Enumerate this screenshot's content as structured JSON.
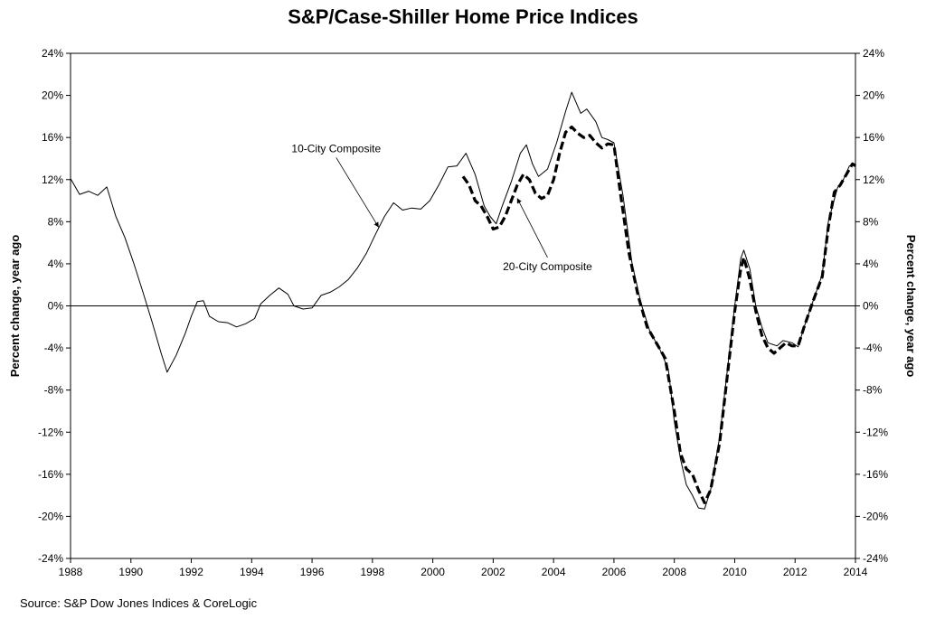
{
  "chart_data": {
    "type": "line",
    "title": "S&P/Case-Shiller Home Price Indices",
    "source": "Source: S&P Dow Jones Indices & CoreLogic",
    "ylabel_left": "Percent change, year ago",
    "ylabel_right": "Percent change, year ago",
    "x_range": [
      1988,
      2014
    ],
    "ylim": [
      -24,
      24
    ],
    "x_ticks": [
      1988,
      1990,
      1992,
      1994,
      1996,
      1998,
      2000,
      2002,
      2004,
      2006,
      2008,
      2010,
      2012,
      2014
    ],
    "y_ticks": [
      24,
      20,
      16,
      12,
      8,
      4,
      0,
      -4,
      -8,
      -12,
      -16,
      -20,
      -24
    ],
    "y_tick_labels": [
      "24%",
      "20%",
      "16%",
      "12%",
      "8%",
      "4%",
      "0%",
      "-4%",
      "-8%",
      "-12%",
      "-16%",
      "-20%",
      "-24%"
    ],
    "zero_line": true,
    "grid": false,
    "series": [
      {
        "name": "10-City Composite",
        "style": "solid-thin",
        "points": [
          [
            1988.0,
            12.1
          ],
          [
            1988.3,
            10.6
          ],
          [
            1988.6,
            10.9
          ],
          [
            1988.9,
            10.5
          ],
          [
            1989.2,
            11.3
          ],
          [
            1989.5,
            8.5
          ],
          [
            1989.8,
            6.5
          ],
          [
            1990.1,
            4.0
          ],
          [
            1990.4,
            1.3
          ],
          [
            1990.7,
            -1.5
          ],
          [
            1991.0,
            -4.5
          ],
          [
            1991.2,
            -6.3
          ],
          [
            1991.5,
            -4.7
          ],
          [
            1991.8,
            -2.6
          ],
          [
            1992.0,
            -1.0
          ],
          [
            1992.2,
            0.4
          ],
          [
            1992.4,
            0.5
          ],
          [
            1992.6,
            -1.0
          ],
          [
            1992.9,
            -1.5
          ],
          [
            1993.2,
            -1.6
          ],
          [
            1993.5,
            -2.0
          ],
          [
            1993.8,
            -1.7
          ],
          [
            1994.1,
            -1.2
          ],
          [
            1994.3,
            0.2
          ],
          [
            1994.6,
            1.0
          ],
          [
            1994.9,
            1.7
          ],
          [
            1995.2,
            1.1
          ],
          [
            1995.4,
            0.0
          ],
          [
            1995.7,
            -0.3
          ],
          [
            1996.0,
            -0.2
          ],
          [
            1996.3,
            1.0
          ],
          [
            1996.6,
            1.3
          ],
          [
            1996.9,
            1.8
          ],
          [
            1997.2,
            2.5
          ],
          [
            1997.5,
            3.6
          ],
          [
            1997.8,
            5.0
          ],
          [
            1998.1,
            6.8
          ],
          [
            1998.4,
            8.5
          ],
          [
            1998.7,
            9.8
          ],
          [
            1999.0,
            9.1
          ],
          [
            1999.3,
            9.3
          ],
          [
            1999.6,
            9.2
          ],
          [
            1999.9,
            10.0
          ],
          [
            2000.2,
            11.5
          ],
          [
            2000.5,
            13.2
          ],
          [
            2000.8,
            13.3
          ],
          [
            2001.1,
            14.5
          ],
          [
            2001.4,
            12.5
          ],
          [
            2001.7,
            9.5
          ],
          [
            2001.9,
            8.5
          ],
          [
            2002.1,
            7.8
          ],
          [
            2002.3,
            9.5
          ],
          [
            2002.6,
            11.8
          ],
          [
            2002.9,
            14.5
          ],
          [
            2003.1,
            15.3
          ],
          [
            2003.3,
            13.5
          ],
          [
            2003.5,
            12.3
          ],
          [
            2003.8,
            13.0
          ],
          [
            2004.1,
            15.5
          ],
          [
            2004.4,
            18.5
          ],
          [
            2004.6,
            20.3
          ],
          [
            2004.9,
            18.3
          ],
          [
            2005.1,
            18.7
          ],
          [
            2005.4,
            17.5
          ],
          [
            2005.6,
            16.0
          ],
          [
            2005.8,
            15.8
          ],
          [
            2006.0,
            15.5
          ],
          [
            2006.3,
            10.5
          ],
          [
            2006.6,
            4.0
          ],
          [
            2006.9,
            0.2
          ],
          [
            2007.2,
            -2.5
          ],
          [
            2007.5,
            -4.0
          ],
          [
            2007.8,
            -6.0
          ],
          [
            2008.0,
            -11.0
          ],
          [
            2008.2,
            -14.5
          ],
          [
            2008.4,
            -17.0
          ],
          [
            2008.6,
            -18.0
          ],
          [
            2008.8,
            -19.2
          ],
          [
            2009.0,
            -19.3
          ],
          [
            2009.2,
            -17.5
          ],
          [
            2009.5,
            -12.5
          ],
          [
            2009.8,
            -5.0
          ],
          [
            2010.0,
            0.0
          ],
          [
            2010.2,
            4.5
          ],
          [
            2010.3,
            5.3
          ],
          [
            2010.5,
            3.5
          ],
          [
            2010.7,
            0.0
          ],
          [
            2010.9,
            -2.0
          ],
          [
            2011.1,
            -3.5
          ],
          [
            2011.4,
            -3.8
          ],
          [
            2011.6,
            -3.3
          ],
          [
            2011.9,
            -3.5
          ],
          [
            2012.1,
            -3.9
          ],
          [
            2012.3,
            -2.0
          ],
          [
            2012.6,
            0.5
          ],
          [
            2012.9,
            3.0
          ],
          [
            2013.1,
            8.0
          ],
          [
            2013.4,
            11.2
          ],
          [
            2013.6,
            12.0
          ],
          [
            2013.8,
            13.3
          ],
          [
            2014.0,
            13.5
          ]
        ]
      },
      {
        "name": "20-City Composite",
        "style": "dashed-thick",
        "points": [
          [
            2001.0,
            12.3
          ],
          [
            2001.2,
            11.5
          ],
          [
            2001.4,
            10.0
          ],
          [
            2001.6,
            9.5
          ],
          [
            2001.8,
            8.5
          ],
          [
            2002.0,
            7.3
          ],
          [
            2002.2,
            7.5
          ],
          [
            2002.4,
            8.5
          ],
          [
            2002.6,
            10.0
          ],
          [
            2002.8,
            11.5
          ],
          [
            2003.0,
            12.5
          ],
          [
            2003.2,
            12.0
          ],
          [
            2003.4,
            10.7
          ],
          [
            2003.6,
            10.2
          ],
          [
            2003.8,
            10.5
          ],
          [
            2004.0,
            12.0
          ],
          [
            2004.2,
            14.5
          ],
          [
            2004.4,
            16.5
          ],
          [
            2004.6,
            17.0
          ],
          [
            2004.8,
            16.4
          ],
          [
            2005.0,
            16.0
          ],
          [
            2005.2,
            16.2
          ],
          [
            2005.4,
            15.5
          ],
          [
            2005.6,
            15.0
          ],
          [
            2005.8,
            15.4
          ],
          [
            2006.0,
            15.3
          ],
          [
            2006.2,
            11.0
          ],
          [
            2006.5,
            5.0
          ],
          [
            2006.8,
            1.0
          ],
          [
            2007.1,
            -2.0
          ],
          [
            2007.4,
            -3.5
          ],
          [
            2007.7,
            -5.0
          ],
          [
            2008.0,
            -10.0
          ],
          [
            2008.2,
            -14.0
          ],
          [
            2008.4,
            -15.5
          ],
          [
            2008.6,
            -16.0
          ],
          [
            2008.8,
            -17.5
          ],
          [
            2009.0,
            -18.7
          ],
          [
            2009.2,
            -17.5
          ],
          [
            2009.5,
            -13.0
          ],
          [
            2009.8,
            -5.5
          ],
          [
            2010.0,
            -0.5
          ],
          [
            2010.2,
            3.5
          ],
          [
            2010.3,
            4.6
          ],
          [
            2010.5,
            2.5
          ],
          [
            2010.7,
            -0.5
          ],
          [
            2010.9,
            -2.8
          ],
          [
            2011.1,
            -4.0
          ],
          [
            2011.3,
            -4.5
          ],
          [
            2011.5,
            -4.0
          ],
          [
            2011.7,
            -3.5
          ],
          [
            2011.9,
            -3.8
          ],
          [
            2012.1,
            -3.8
          ],
          [
            2012.3,
            -2.0
          ],
          [
            2012.6,
            0.5
          ],
          [
            2012.9,
            2.8
          ],
          [
            2013.1,
            7.5
          ],
          [
            2013.3,
            10.8
          ],
          [
            2013.5,
            11.5
          ],
          [
            2013.7,
            12.5
          ],
          [
            2013.9,
            13.5
          ],
          [
            2014.0,
            13.3
          ]
        ]
      }
    ],
    "annotations": [
      {
        "text": "10-City Composite",
        "series": "10-City Composite",
        "at_x": 1996.8,
        "at_y": 14.6,
        "arrow_to": [
          1998.2,
          7.5
        ]
      },
      {
        "text": "20-City Composite",
        "series": "20-City Composite",
        "at_x": 2003.8,
        "at_y": 3.4,
        "arrow_to": [
          2002.8,
          10.2
        ]
      }
    ]
  }
}
